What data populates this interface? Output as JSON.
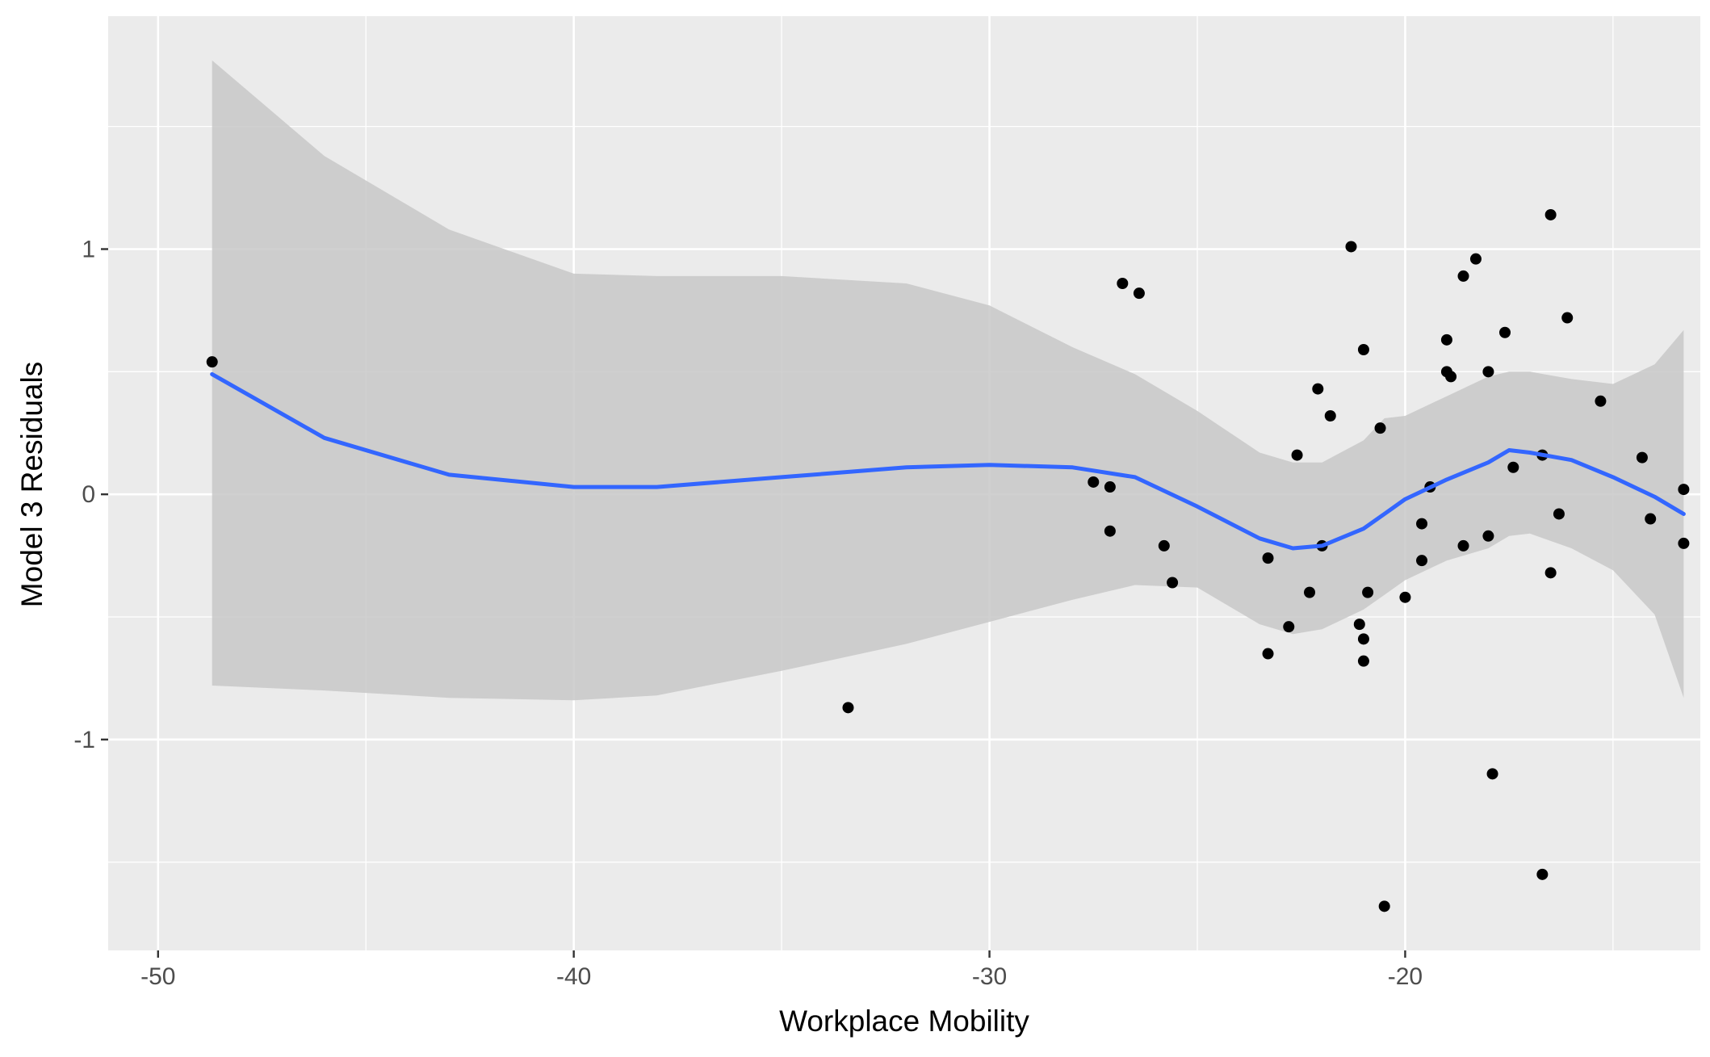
{
  "chart_data": {
    "type": "scatter",
    "title": "",
    "xlabel": "Workplace Mobility",
    "ylabel": "Model 3 Residuals",
    "xlim": [
      -51.2,
      -12.9
    ],
    "ylim": [
      -1.86,
      1.95
    ],
    "xticks": [
      -50,
      -40,
      -30,
      -20
    ],
    "yticks": [
      -1,
      0,
      1
    ],
    "x_minor": [
      -45,
      -35,
      -25,
      -15
    ],
    "y_minor": [
      -1.5,
      -0.5,
      0.5,
      1.5
    ],
    "grid": true,
    "legend": "none",
    "colors": {
      "panel": "#ebebeb",
      "grid": "#ffffff",
      "points": "#000000",
      "smooth_line": "#3366ff",
      "confidence_band": "#c8c8c8"
    },
    "points": [
      {
        "x": -48.7,
        "y": 0.54
      },
      {
        "x": -33.4,
        "y": -0.87
      },
      {
        "x": -27.5,
        "y": 0.05
      },
      {
        "x": -27.1,
        "y": 0.03
      },
      {
        "x": -27.1,
        "y": -0.15
      },
      {
        "x": -26.8,
        "y": 0.86
      },
      {
        "x": -26.4,
        "y": 0.82
      },
      {
        "x": -25.8,
        "y": -0.21
      },
      {
        "x": -25.6,
        "y": -0.36
      },
      {
        "x": -23.3,
        "y": -0.26
      },
      {
        "x": -23.3,
        "y": -0.65
      },
      {
        "x": -22.8,
        "y": -0.54
      },
      {
        "x": -22.6,
        "y": 0.16
      },
      {
        "x": -22.3,
        "y": -0.4
      },
      {
        "x": -22.1,
        "y": 0.43
      },
      {
        "x": -22.0,
        "y": -0.21
      },
      {
        "x": -21.8,
        "y": 0.32
      },
      {
        "x": -21.3,
        "y": 1.01
      },
      {
        "x": -21.1,
        "y": -0.53
      },
      {
        "x": -21.0,
        "y": 0.59
      },
      {
        "x": -21.0,
        "y": -0.59
      },
      {
        "x": -21.0,
        "y": -0.68
      },
      {
        "x": -20.9,
        "y": -0.4
      },
      {
        "x": -20.6,
        "y": 0.27
      },
      {
        "x": -20.5,
        "y": -1.68
      },
      {
        "x": -20.0,
        "y": -0.42
      },
      {
        "x": -19.6,
        "y": -0.12
      },
      {
        "x": -19.6,
        "y": -0.27
      },
      {
        "x": -19.4,
        "y": 0.03
      },
      {
        "x": -19.0,
        "y": 0.63
      },
      {
        "x": -19.0,
        "y": 0.5
      },
      {
        "x": -18.9,
        "y": 0.48
      },
      {
        "x": -18.6,
        "y": -0.21
      },
      {
        "x": -18.6,
        "y": 0.89
      },
      {
        "x": -18.3,
        "y": 0.96
      },
      {
        "x": -18.0,
        "y": 0.5
      },
      {
        "x": -18.0,
        "y": -0.17
      },
      {
        "x": -17.9,
        "y": -1.14
      },
      {
        "x": -17.6,
        "y": 0.66
      },
      {
        "x": -17.4,
        "y": 0.11
      },
      {
        "x": -16.7,
        "y": 0.16
      },
      {
        "x": -16.7,
        "y": -1.55
      },
      {
        "x": -16.5,
        "y": 1.14
      },
      {
        "x": -16.5,
        "y": -0.32
      },
      {
        "x": -16.3,
        "y": -0.08
      },
      {
        "x": -16.1,
        "y": 0.72
      },
      {
        "x": -15.3,
        "y": 0.38
      },
      {
        "x": -14.3,
        "y": 0.15
      },
      {
        "x": -14.1,
        "y": -0.1
      },
      {
        "x": -13.3,
        "y": 0.02
      },
      {
        "x": -13.3,
        "y": -0.2
      }
    ],
    "smooth": {
      "x": [
        -48.7,
        -46.0,
        -43.0,
        -40.0,
        -38.0,
        -35.0,
        -32.0,
        -30.0,
        -28.0,
        -26.5,
        -25.0,
        -23.5,
        -22.7,
        -22.0,
        -21.0,
        -20.5,
        -20.0,
        -19.0,
        -18.0,
        -17.5,
        -17.0,
        -16.0,
        -15.0,
        -14.0,
        -13.3
      ],
      "y": [
        0.49,
        0.23,
        0.08,
        0.03,
        0.03,
        0.07,
        0.11,
        0.12,
        0.11,
        0.07,
        -0.05,
        -0.18,
        -0.22,
        -0.21,
        -0.14,
        -0.08,
        -0.02,
        0.06,
        0.13,
        0.18,
        0.17,
        0.14,
        0.07,
        -0.01,
        -0.08
      ],
      "upper": [
        1.77,
        1.38,
        1.08,
        0.9,
        0.89,
        0.89,
        0.86,
        0.77,
        0.6,
        0.49,
        0.34,
        0.17,
        0.13,
        0.13,
        0.22,
        0.31,
        0.32,
        0.4,
        0.48,
        0.5,
        0.5,
        0.47,
        0.45,
        0.53,
        0.67
      ],
      "lower": [
        -0.78,
        -0.8,
        -0.83,
        -0.84,
        -0.82,
        -0.72,
        -0.61,
        -0.52,
        -0.43,
        -0.37,
        -0.38,
        -0.53,
        -0.57,
        -0.55,
        -0.47,
        -0.41,
        -0.35,
        -0.27,
        -0.22,
        -0.17,
        -0.16,
        -0.22,
        -0.31,
        -0.49,
        -0.83
      ]
    }
  }
}
